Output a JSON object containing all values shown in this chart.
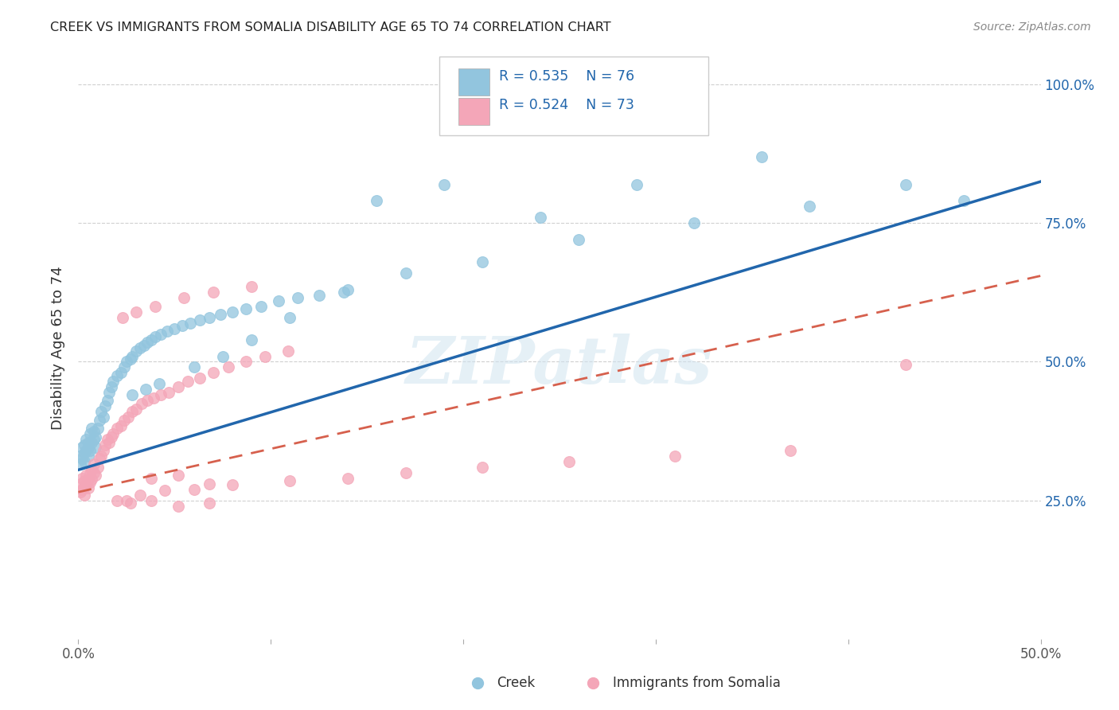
{
  "title": "CREEK VS IMMIGRANTS FROM SOMALIA DISABILITY AGE 65 TO 74 CORRELATION CHART",
  "source": "Source: ZipAtlas.com",
  "ylabel": "Disability Age 65 to 74",
  "x_min": 0.0,
  "x_max": 0.5,
  "y_min": 0.0,
  "y_max": 1.05,
  "x_tick_pos": [
    0.0,
    0.1,
    0.2,
    0.3,
    0.4,
    0.5
  ],
  "x_tick_labels": [
    "0.0%",
    "",
    "",
    "",
    "",
    "50.0%"
  ],
  "y_tick_pos": [
    0.25,
    0.5,
    0.75,
    1.0
  ],
  "y_tick_labels": [
    "25.0%",
    "50.0%",
    "75.0%",
    "100.0%"
  ],
  "watermark": "ZIPatlas",
  "legend_label1": "Creek",
  "legend_label2": "Immigrants from Somalia",
  "legend_r1": "R = 0.535",
  "legend_n1": "N = 76",
  "legend_r2": "R = 0.524",
  "legend_n2": "N = 73",
  "color_creek": "#92c5de",
  "color_somalia": "#f4a6b8",
  "color_trendline1": "#2166ac",
  "color_trendline2": "#d6604d",
  "trendline1_x0": 0.0,
  "trendline1_y0": 0.305,
  "trendline1_x1": 0.5,
  "trendline1_y1": 0.825,
  "trendline2_x0": 0.0,
  "trendline2_y0": 0.265,
  "trendline2_x1": 0.5,
  "trendline2_y1": 0.655,
  "background_color": "#ffffff",
  "grid_color": "#d0d0d0",
  "creek_x": [
    0.001,
    0.001,
    0.002,
    0.002,
    0.003,
    0.003,
    0.003,
    0.004,
    0.004,
    0.005,
    0.005,
    0.005,
    0.006,
    0.006,
    0.007,
    0.007,
    0.008,
    0.008,
    0.009,
    0.009,
    0.01,
    0.011,
    0.012,
    0.013,
    0.014,
    0.015,
    0.016,
    0.017,
    0.018,
    0.02,
    0.022,
    0.024,
    0.025,
    0.027,
    0.028,
    0.03,
    0.032,
    0.034,
    0.036,
    0.038,
    0.04,
    0.043,
    0.046,
    0.05,
    0.054,
    0.058,
    0.063,
    0.068,
    0.074,
    0.08,
    0.087,
    0.095,
    0.104,
    0.114,
    0.125,
    0.138,
    0.028,
    0.035,
    0.042,
    0.06,
    0.075,
    0.09,
    0.11,
    0.14,
    0.17,
    0.21,
    0.26,
    0.32,
    0.38,
    0.43,
    0.155,
    0.19,
    0.24,
    0.29,
    0.355,
    0.46
  ],
  "creek_y": [
    0.33,
    0.315,
    0.345,
    0.325,
    0.35,
    0.335,
    0.32,
    0.36,
    0.34,
    0.355,
    0.33,
    0.345,
    0.37,
    0.34,
    0.38,
    0.355,
    0.36,
    0.375,
    0.345,
    0.365,
    0.38,
    0.395,
    0.41,
    0.4,
    0.42,
    0.43,
    0.445,
    0.455,
    0.465,
    0.475,
    0.48,
    0.49,
    0.5,
    0.505,
    0.51,
    0.52,
    0.525,
    0.53,
    0.535,
    0.54,
    0.545,
    0.55,
    0.555,
    0.56,
    0.565,
    0.57,
    0.575,
    0.58,
    0.585,
    0.59,
    0.595,
    0.6,
    0.61,
    0.615,
    0.62,
    0.625,
    0.44,
    0.45,
    0.46,
    0.49,
    0.51,
    0.54,
    0.58,
    0.63,
    0.66,
    0.68,
    0.72,
    0.75,
    0.78,
    0.82,
    0.79,
    0.82,
    0.76,
    0.82,
    0.87,
    0.79
  ],
  "somalia_x": [
    0.001,
    0.001,
    0.002,
    0.002,
    0.003,
    0.003,
    0.003,
    0.004,
    0.004,
    0.005,
    0.005,
    0.006,
    0.006,
    0.007,
    0.007,
    0.008,
    0.008,
    0.009,
    0.01,
    0.011,
    0.012,
    0.013,
    0.014,
    0.015,
    0.016,
    0.017,
    0.018,
    0.02,
    0.022,
    0.024,
    0.026,
    0.028,
    0.03,
    0.033,
    0.036,
    0.039,
    0.043,
    0.047,
    0.052,
    0.057,
    0.063,
    0.07,
    0.078,
    0.087,
    0.097,
    0.109,
    0.023,
    0.03,
    0.04,
    0.055,
    0.07,
    0.09,
    0.025,
    0.032,
    0.045,
    0.06,
    0.08,
    0.11,
    0.14,
    0.17,
    0.21,
    0.255,
    0.31,
    0.37,
    0.43,
    0.02,
    0.027,
    0.038,
    0.052,
    0.068,
    0.038,
    0.052,
    0.068
  ],
  "somalia_y": [
    0.28,
    0.265,
    0.29,
    0.27,
    0.285,
    0.275,
    0.26,
    0.295,
    0.278,
    0.288,
    0.272,
    0.298,
    0.282,
    0.305,
    0.288,
    0.3,
    0.315,
    0.295,
    0.31,
    0.325,
    0.33,
    0.34,
    0.35,
    0.36,
    0.355,
    0.365,
    0.37,
    0.38,
    0.385,
    0.395,
    0.4,
    0.41,
    0.415,
    0.425,
    0.43,
    0.435,
    0.44,
    0.445,
    0.455,
    0.465,
    0.47,
    0.48,
    0.49,
    0.5,
    0.51,
    0.52,
    0.58,
    0.59,
    0.6,
    0.615,
    0.625,
    0.635,
    0.25,
    0.26,
    0.268,
    0.27,
    0.278,
    0.285,
    0.29,
    0.3,
    0.31,
    0.32,
    0.33,
    0.34,
    0.495,
    0.25,
    0.245,
    0.25,
    0.24,
    0.245,
    0.29,
    0.295,
    0.28
  ]
}
